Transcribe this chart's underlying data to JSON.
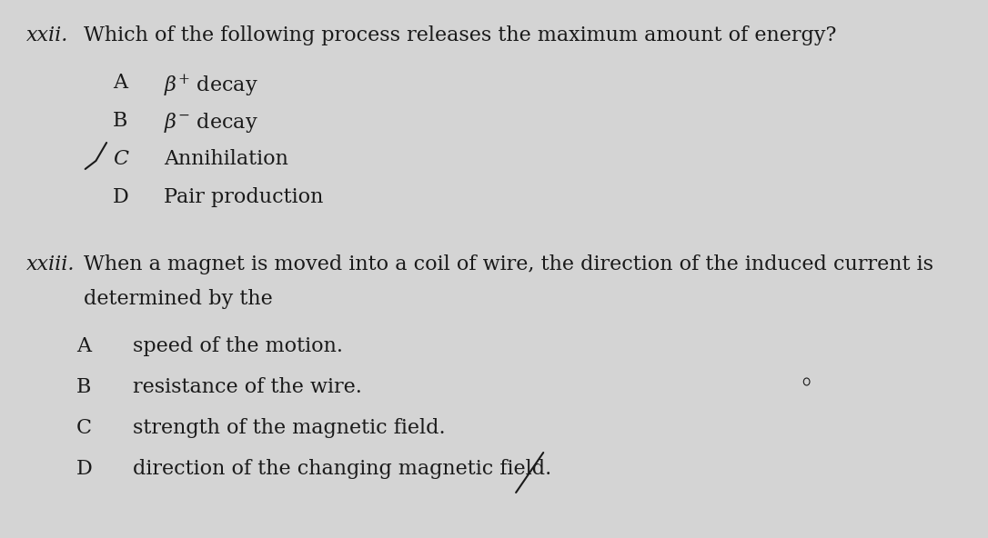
{
  "background_color": "#d4d4d4",
  "text_color": "#1a1a1a",
  "fig_width": 10.86,
  "fig_height": 5.92,
  "q22_number": "xxii.",
  "q22_question": "Which of the following process releases the maximum amount of energy?",
  "q23_number": "xxiii.",
  "q23_question_line1": "When a magnet is moved into a coil of wire, the direction of the induced current is",
  "q23_question_line2": "determined by the",
  "font_size_q": 16,
  "font_size_opt": 16
}
